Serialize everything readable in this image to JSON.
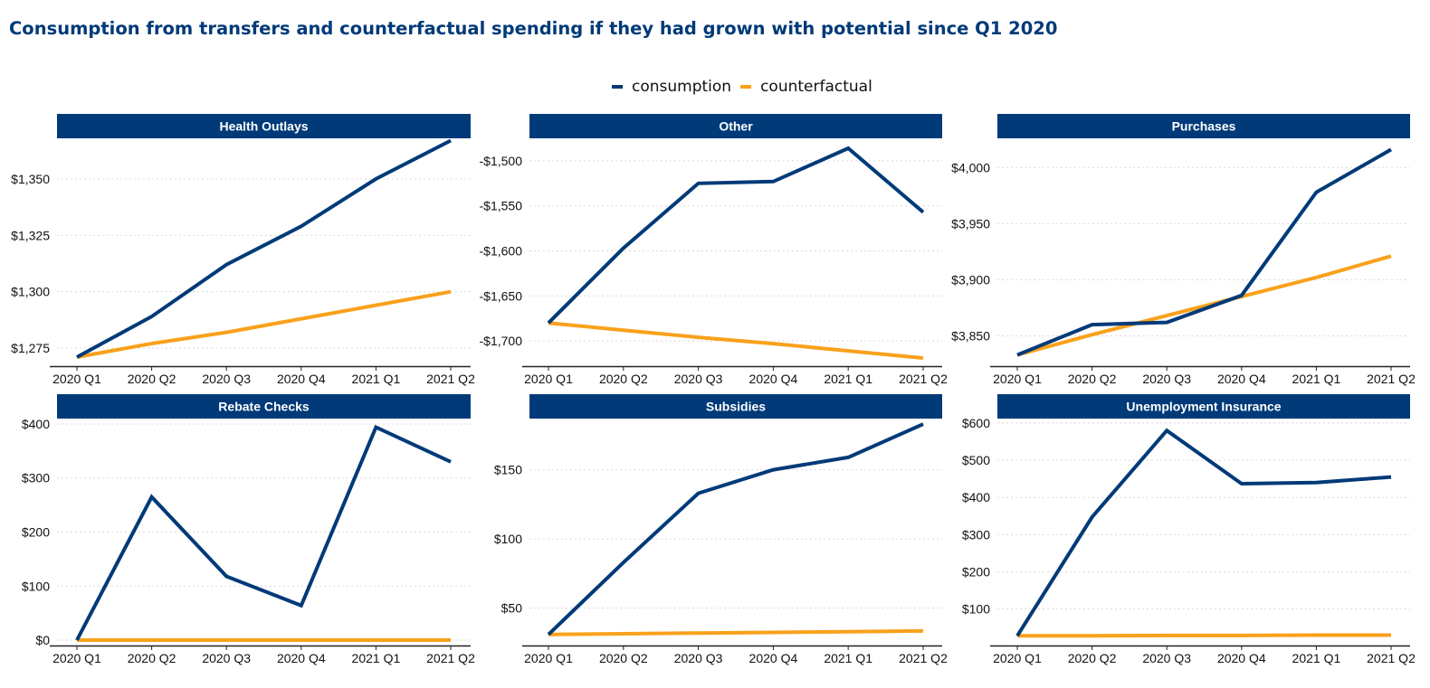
{
  "title": "Consumption  from transfers and counterfactual  spending  if they had grown with potential since Q1 2020",
  "legend": {
    "series": [
      {
        "name": "consumption",
        "color": "#003a78"
      },
      {
        "name": "counterfactual",
        "color": "#f9a11b"
      }
    ]
  },
  "colors": {
    "header_bg": "#003a78",
    "header_text": "#ffffff",
    "consumption": "#003a78",
    "counterfactual": "#f9a11b",
    "grid": "#d9d9d9",
    "axis": "#222222"
  },
  "chart_data": [
    {
      "type": "line",
      "title": "Health Outlays",
      "categories": [
        "2020 Q1",
        "2020 Q2",
        "2020 Q3",
        "2020 Q4",
        "2021 Q1",
        "2021 Q2"
      ],
      "ylim": [
        1267,
        1368
      ],
      "yticks": [
        1275,
        1300,
        1325,
        1350
      ],
      "ytick_labels": [
        "$1,275",
        "$1,300",
        "$1,325",
        "$1,350"
      ],
      "grid": "horizontal",
      "series": [
        {
          "name": "consumption",
          "values": [
            1271,
            1289,
            1312,
            1329,
            1350,
            1367
          ]
        },
        {
          "name": "counterfactual",
          "values": [
            1271,
            1277,
            1282,
            1288,
            1294,
            1300
          ]
        }
      ]
    },
    {
      "type": "line",
      "title": "Other",
      "categories": [
        "2020 Q1",
        "2020 Q2",
        "2020 Q3",
        "2020 Q4",
        "2021 Q1",
        "2021 Q2"
      ],
      "ylim": [
        -1728,
        -1475
      ],
      "yticks": [
        -1700,
        -1650,
        -1600,
        -1550,
        -1500
      ],
      "ytick_labels": [
        "-$1,700",
        "-$1,650",
        "-$1,600",
        "-$1,550",
        "-$1,500"
      ],
      "grid": "horizontal",
      "series": [
        {
          "name": "consumption",
          "values": [
            -1680,
            -1597,
            -1525,
            -1523,
            -1486,
            -1557
          ]
        },
        {
          "name": "counterfactual",
          "values": [
            -1680,
            -1688,
            -1696,
            -1703,
            -1711,
            -1719
          ]
        }
      ]
    },
    {
      "type": "line",
      "title": "Purchases",
      "categories": [
        "2020 Q1",
        "2020 Q2",
        "2020 Q3",
        "2020 Q4",
        "2021 Q1",
        "2021 Q2"
      ],
      "ylim": [
        3823,
        4026
      ],
      "yticks": [
        3850,
        3900,
        3950,
        4000
      ],
      "ytick_labels": [
        "$3,850",
        "$3,900",
        "$3,950",
        "$4,000"
      ],
      "grid": "horizontal",
      "series": [
        {
          "name": "consumption",
          "values": [
            3833,
            3860,
            3862,
            3886,
            3978,
            4016
          ]
        },
        {
          "name": "counterfactual",
          "values": [
            3833,
            3851,
            3868,
            3885,
            3902,
            3921
          ]
        }
      ]
    },
    {
      "type": "line",
      "title": "Rebate Checks",
      "categories": [
        "2020 Q1",
        "2020 Q2",
        "2020 Q3",
        "2020 Q4",
        "2021 Q1",
        "2021 Q2"
      ],
      "ylim": [
        -10,
        410
      ],
      "yticks": [
        0,
        100,
        200,
        300,
        400
      ],
      "ytick_labels": [
        "$0",
        "$100",
        "$200",
        "$300",
        "$400"
      ],
      "grid": "horizontal",
      "series": [
        {
          "name": "consumption",
          "values": [
            0,
            265,
            118,
            64,
            394,
            330
          ]
        },
        {
          "name": "counterfactual",
          "values": [
            0,
            0,
            0,
            0,
            0,
            0
          ]
        }
      ]
    },
    {
      "type": "line",
      "title": "Subsidies",
      "categories": [
        "2020 Q1",
        "2020 Q2",
        "2020 Q3",
        "2020 Q4",
        "2021 Q1",
        "2021 Q2"
      ],
      "ylim": [
        23,
        187
      ],
      "yticks": [
        50,
        100,
        150
      ],
      "ytick_labels": [
        "$50",
        "$100",
        "$150"
      ],
      "grid": "horizontal",
      "series": [
        {
          "name": "consumption",
          "values": [
            31,
            83,
            133,
            150,
            159,
            183
          ]
        },
        {
          "name": "counterfactual",
          "values": [
            31,
            31.5,
            32,
            32.5,
            33,
            33.5
          ]
        }
      ]
    },
    {
      "type": "line",
      "title": "Unemployment Insurance",
      "categories": [
        "2020 Q1",
        "2020 Q2",
        "2020 Q3",
        "2020 Q4",
        "2021 Q1",
        "2021 Q2"
      ],
      "ylim": [
        2,
        612
      ],
      "yticks": [
        100,
        200,
        300,
        400,
        500,
        600
      ],
      "ytick_labels": [
        "$100",
        "$200",
        "$300",
        "$400",
        "$500",
        "$600"
      ],
      "grid": "horizontal",
      "series": [
        {
          "name": "consumption",
          "values": [
            28,
            347,
            580,
            437,
            440,
            455
          ]
        },
        {
          "name": "counterfactual",
          "values": [
            28,
            28,
            29,
            29,
            30,
            30
          ]
        }
      ]
    }
  ]
}
